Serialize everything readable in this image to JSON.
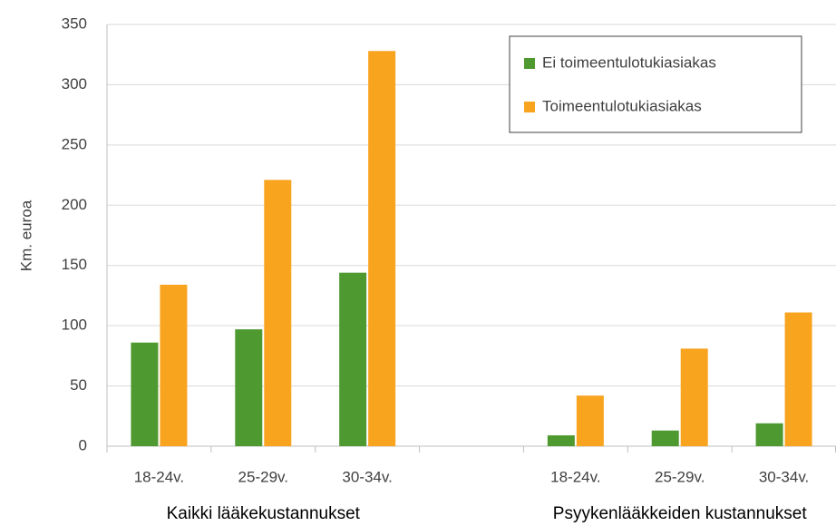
{
  "chart_data": {
    "type": "bar",
    "y_label": "Km. euroa",
    "categories": [
      "18-24v.",
      "25-29v.",
      "30-34v.",
      null,
      "18-24v.",
      "25-29v.",
      "30-34v."
    ],
    "group_labels": [
      "Kaikki lääkekustannukset",
      "Psyykenlääkkeiden kustannukset"
    ],
    "series": [
      {
        "name": "Ei toimeentulotukiasiakas",
        "color": "#4e9a30",
        "values": [
          86,
          97,
          144,
          null,
          9,
          13,
          19
        ]
      },
      {
        "name": "Toimeentulotukiasiakas",
        "color": "#f8a41f",
        "values": [
          134,
          221,
          328,
          null,
          42,
          81,
          111
        ]
      }
    ],
    "ylim": [
      0,
      350
    ],
    "yticks": [
      0,
      50,
      100,
      150,
      200,
      250,
      300,
      350
    ],
    "grid": true,
    "legend": "upper right"
  }
}
